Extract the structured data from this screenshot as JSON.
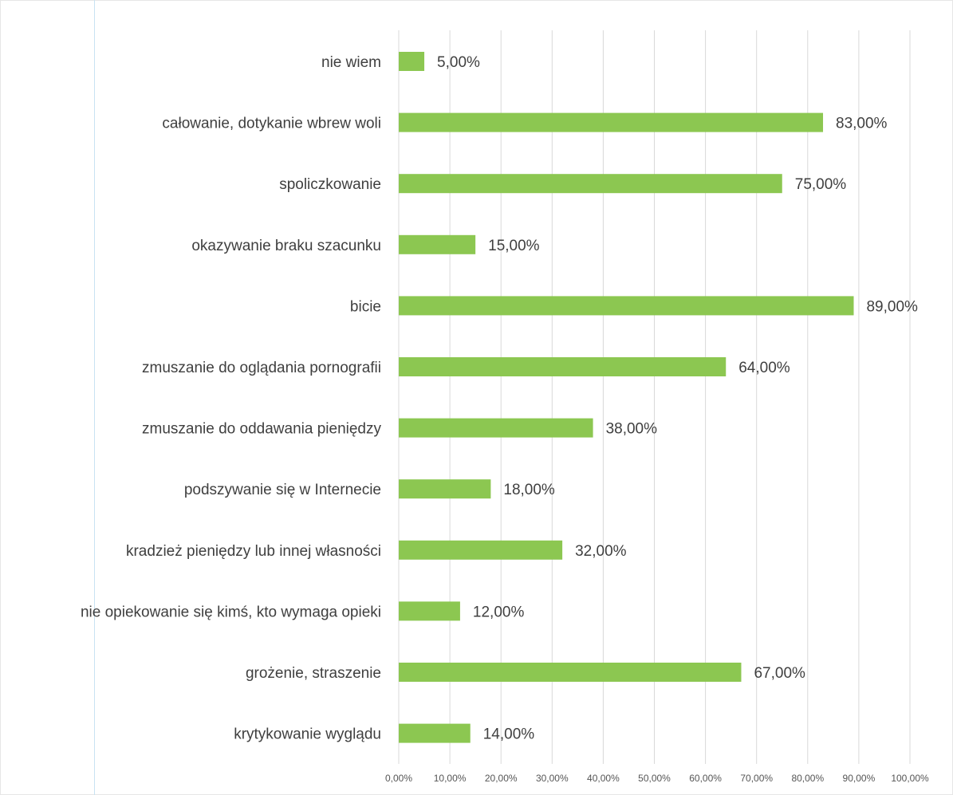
{
  "chart_data": {
    "type": "bar",
    "orientation": "horizontal",
    "title": "",
    "xlabel": "",
    "ylabel": "",
    "categories": [
      "nie wiem",
      "całowanie, dotykanie wbrew woli",
      "spoliczkowanie",
      "okazywanie braku szacunku",
      "bicie",
      "zmuszanie do oglądania pornografii",
      "zmuszanie do oddawania pieniędzy",
      "podszywanie się w Internecie",
      "kradzież pieniędzy lub innej własności",
      "nie opiekowanie się kimś, kto wymaga opieki",
      "grożenie, straszenie",
      "krytykowanie wyglądu"
    ],
    "values": [
      5,
      83,
      75,
      15,
      89,
      64,
      38,
      18,
      32,
      12,
      67,
      14
    ],
    "value_labels": [
      "5,00%",
      "83,00%",
      "75,00%",
      "15,00%",
      "89,00%",
      "64,00%",
      "38,00%",
      "18,00%",
      "32,00%",
      "12,00%",
      "67,00%",
      "14,00%"
    ],
    "xlim": [
      0,
      100
    ],
    "xticks": [
      0,
      10,
      20,
      30,
      40,
      50,
      60,
      70,
      80,
      90,
      100
    ],
    "xtick_labels": [
      "0,00%",
      "10,00%",
      "20,00%",
      "30,00%",
      "40,00%",
      "50,00%",
      "60,00%",
      "70,00%",
      "80,00%",
      "90,00%",
      "100,00%"
    ],
    "grid": "vertical",
    "legend": "none",
    "colors": {
      "bar": "#8cc751",
      "grid": "#d9d9d9",
      "text": "#3f3f3f"
    }
  }
}
